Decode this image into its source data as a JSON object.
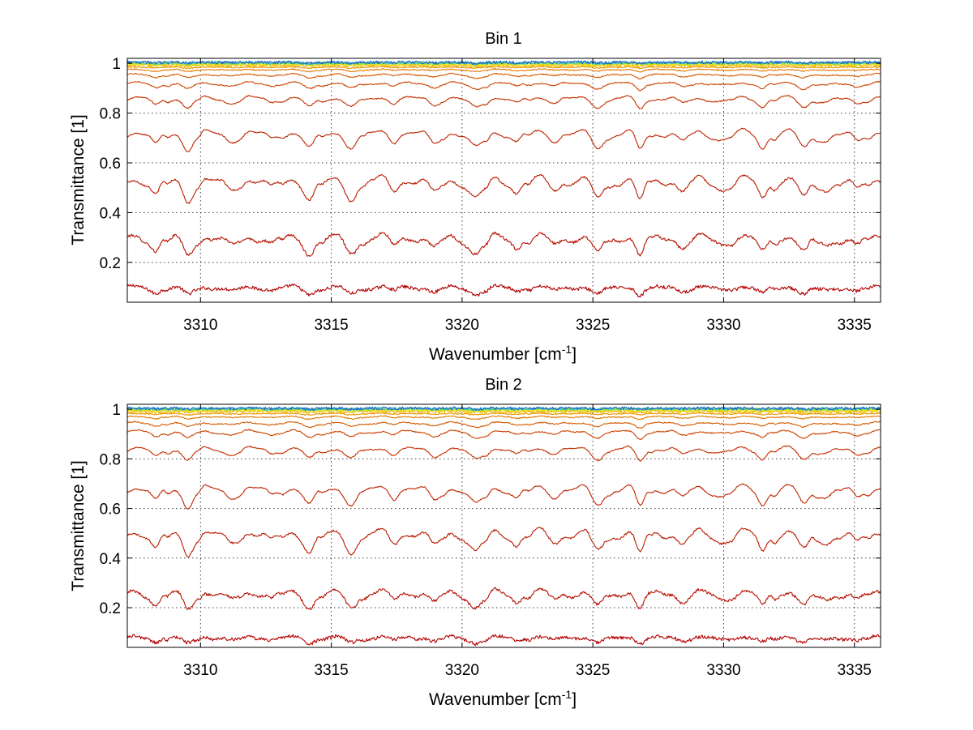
{
  "chart_data": [
    {
      "type": "line",
      "title": "Bin 1",
      "xlabel": "Wavenumber [cm",
      "xlabel_sup": "-1",
      "xlabel_end": "]",
      "ylabel": "Transmittance [1]",
      "xlim": [
        3307.2,
        3336.0
      ],
      "ylim": [
        0.04,
        1.02
      ],
      "xticks": [
        3310,
        3315,
        3320,
        3325,
        3330,
        3335
      ],
      "yticks": [
        0.2,
        0.4,
        0.6,
        0.8,
        1
      ],
      "grid": true,
      "line_centers": [
        3308.3,
        3309.5,
        3311.1,
        3312.7,
        3314.2,
        3315.8,
        3317.4,
        3318.9,
        3320.5,
        3322.1,
        3323.6,
        3325.2,
        3326.8,
        3328.4,
        3329.9,
        3331.5,
        3333.1,
        3334.0,
        3335.1
      ],
      "series": [
        {
          "baseline": 0.1,
          "color": "#b30000"
        },
        {
          "baseline": 0.3,
          "color": "#b51000"
        },
        {
          "baseline": 0.53,
          "color": "#b81a00"
        },
        {
          "baseline": 0.72,
          "color": "#bd2400"
        },
        {
          "baseline": 0.86,
          "color": "#c43000"
        },
        {
          "baseline": 0.92,
          "color": "#cc4400"
        },
        {
          "baseline": 0.955,
          "color": "#d45a00"
        },
        {
          "baseline": 0.975,
          "color": "#e07800"
        },
        {
          "baseline": 0.985,
          "color": "#e89400"
        },
        {
          "baseline": 0.992,
          "color": "#f0b400"
        },
        {
          "baseline": 0.996,
          "color": "#f6d400"
        },
        {
          "baseline": 0.999,
          "color": "#e6ec20"
        },
        {
          "baseline": 1.001,
          "color": "#9ae040"
        },
        {
          "baseline": 1.003,
          "color": "#30c8c8"
        },
        {
          "baseline": 1.004,
          "color": "#1e64c8"
        }
      ]
    },
    {
      "type": "line",
      "title": "Bin 2",
      "xlabel": "Wavenumber [cm",
      "xlabel_sup": "-1",
      "xlabel_end": "]",
      "ylabel": "Transmittance [1]",
      "xlim": [
        3307.2,
        3336.0
      ],
      "ylim": [
        0.04,
        1.02
      ],
      "xticks": [
        3310,
        3315,
        3320,
        3325,
        3330,
        3335
      ],
      "yticks": [
        0.2,
        0.4,
        0.6,
        0.8,
        1
      ],
      "grid": true,
      "line_centers": [
        3308.3,
        3309.5,
        3311.1,
        3312.7,
        3314.2,
        3315.8,
        3317.4,
        3318.9,
        3320.5,
        3322.1,
        3323.6,
        3325.2,
        3326.8,
        3328.4,
        3329.9,
        3331.5,
        3333.1,
        3334.0,
        3335.1
      ],
      "series": [
        {
          "baseline": 0.08,
          "color": "#b30000"
        },
        {
          "baseline": 0.26,
          "color": "#b51000"
        },
        {
          "baseline": 0.5,
          "color": "#b81a00"
        },
        {
          "baseline": 0.68,
          "color": "#bd2400"
        },
        {
          "baseline": 0.84,
          "color": "#c43000"
        },
        {
          "baseline": 0.91,
          "color": "#cc4400"
        },
        {
          "baseline": 0.945,
          "color": "#d45a00"
        },
        {
          "baseline": 0.97,
          "color": "#e07800"
        },
        {
          "baseline": 0.983,
          "color": "#e89400"
        },
        {
          "baseline": 0.991,
          "color": "#f0b400"
        },
        {
          "baseline": 0.996,
          "color": "#f6d400"
        },
        {
          "baseline": 0.999,
          "color": "#e6ec20"
        },
        {
          "baseline": 1.001,
          "color": "#9ae040"
        },
        {
          "baseline": 1.003,
          "color": "#30c8c8"
        },
        {
          "baseline": 1.004,
          "color": "#1e64c8"
        }
      ]
    }
  ]
}
